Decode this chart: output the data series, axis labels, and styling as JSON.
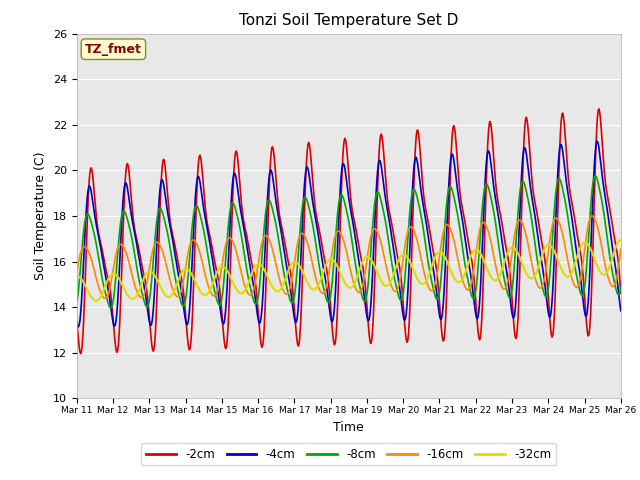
{
  "title": "Tonzi Soil Temperature Set D",
  "xlabel": "Time",
  "ylabel": "Soil Temperature (C)",
  "ylim": [
    10,
    26
  ],
  "background_color": "#e8e8e8",
  "annotation_text": "TZ_fmet",
  "annotation_color": "#8b0000",
  "annotation_bg": "#ffffcc",
  "series": {
    "-2cm": {
      "color": "#dd0000",
      "lw": 1.2
    },
    "-4cm": {
      "color": "#0000cc",
      "lw": 1.2
    },
    "-8cm": {
      "color": "#00aa00",
      "lw": 1.2
    },
    "-16cm": {
      "color": "#ff8800",
      "lw": 1.2
    },
    "-32cm": {
      "color": "#dddd00",
      "lw": 1.5
    }
  },
  "xtick_labels": [
    "Mar 11",
    "Mar 12",
    "Mar 13",
    "Mar 14",
    "Mar 15",
    "Mar 16",
    "Mar 17",
    "Mar 18",
    "Mar 19",
    "Mar 20",
    "Mar 21",
    "Mar 22",
    "Mar 23",
    "Mar 24",
    "Mar 25",
    "Mar 26"
  ],
  "ytick_values": [
    10,
    12,
    14,
    16,
    18,
    20,
    22,
    24,
    26
  ]
}
